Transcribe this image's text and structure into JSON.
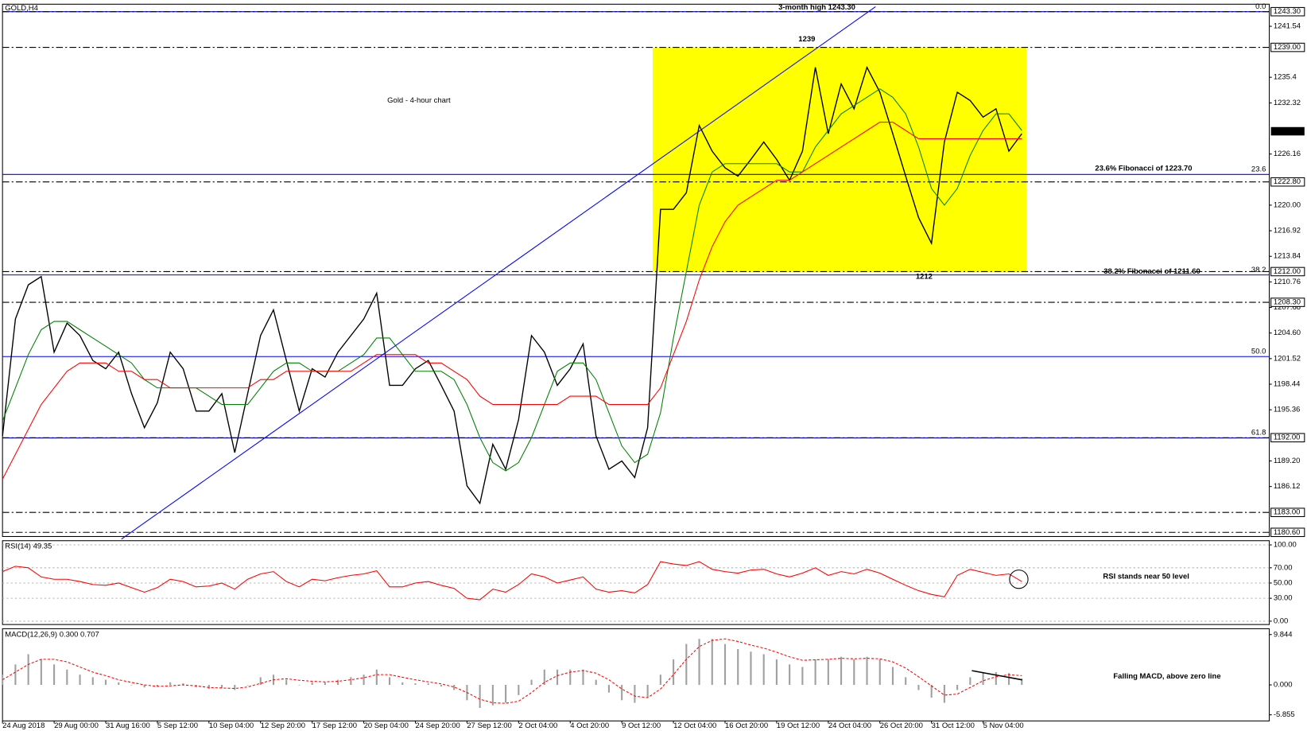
{
  "chart_data": [
    {
      "type": "line",
      "title": "Gold - 4-hour chart",
      "subtitle": "GOLD,H4",
      "categories": [
        "24 Aug 2018",
        null,
        null,
        null,
        "29 Aug 00:00",
        null,
        null,
        null,
        "31 Aug 16:00",
        null,
        null,
        null,
        "5 Sep 12:00",
        null,
        null,
        null,
        "10 Sep 04:00",
        null,
        null,
        null,
        "12 Sep 20:00",
        null,
        null,
        null,
        "17 Sep 12:00",
        null,
        null,
        null,
        "20 Sep 04:00",
        null,
        null,
        null,
        "24 Sep 20:00",
        null,
        null,
        null,
        "27 Sep 12:00",
        null,
        null,
        null,
        "2 Oct 04:00",
        null,
        null,
        null,
        "4 Oct 20:00",
        null,
        null,
        null,
        "9 Oct 12:00",
        null,
        null,
        null,
        "12 Oct 04:00",
        null,
        null,
        null,
        "16 Oct 20:00",
        null,
        null,
        null,
        "19 Oct 12:00",
        null,
        null,
        null,
        "24 Oct 04:00",
        null,
        null,
        null,
        "26 Oct 20:00",
        null,
        null,
        null,
        "31 Oct 12:00",
        null,
        null,
        null,
        "5 Nov 04:00",
        null,
        null,
        null
      ],
      "series": [
        {
          "color": "#000000",
          "values": [
            1192.2,
            1206.3,
            1210.4,
            1211.4,
            1202.3,
            1205.8,
            1204.3,
            1201.3,
            1200.3,
            1202.3,
            1197.3,
            1193.2,
            1196.2,
            1202.3,
            1200.3,
            1195.2,
            1195.2,
            1197.3,
            1190.2,
            1197.3,
            1204.3,
            1207.4,
            1201.3,
            1195.2,
            1200.3,
            1199.3,
            1202.3,
            1204.3,
            1206.3,
            1209.4,
            1198.3,
            1198.3,
            1200.3,
            1201.3,
            1198.3,
            1195.2,
            1186.2,
            1184.1,
            1191.2,
            1188.2,
            1194.2,
            1204.3,
            1202.3,
            1198.3,
            1200.3,
            1203.3,
            1192.2,
            1188.2,
            1189.2,
            1187.2,
            1193.2,
            1219.5,
            1219.5,
            1221.5,
            1229.6,
            1226.5,
            1224.5,
            1223.5,
            1225.5,
            1227.6,
            1225.5,
            1223.0,
            1226.5,
            1236.6,
            1228.6,
            1234.6,
            1231.6,
            1236.6,
            1233.6,
            1228.6,
            1223.5,
            1218.5,
            1215.4,
            1227.6,
            1233.6,
            1232.6,
            1230.6,
            1231.6,
            1226.5,
            1228.6
          ]
        },
        {
          "color": "#008000",
          "values": [
            1194,
            1198,
            1202,
            1205,
            1206,
            1206,
            1205,
            1204,
            1203,
            1202,
            1201,
            1199,
            1198,
            1198,
            1198,
            1198,
            1197,
            1196,
            1196,
            1196,
            1198,
            1200,
            1201,
            1201,
            1200,
            1200,
            1200,
            1201,
            1202,
            1204,
            1204,
            1202,
            1200,
            1200,
            1200,
            1199,
            1196,
            1192,
            1189,
            1188,
            1189,
            1192,
            1196,
            1200,
            1201,
            1201,
            1199,
            1195,
            1191,
            1189,
            1190,
            1195,
            1204,
            1212,
            1220,
            1224,
            1225,
            1225,
            1225,
            1225,
            1225,
            1224,
            1224,
            1227,
            1229,
            1231,
            1232,
            1233,
            1234,
            1233,
            1231,
            1227,
            1222,
            1220,
            1222,
            1226,
            1229,
            1231,
            1231,
            1229
          ]
        },
        {
          "color": "#ff0000",
          "values": [
            1187,
            1190,
            1193,
            1196,
            1198,
            1200,
            1201,
            1201,
            1201,
            1200,
            1200,
            1199,
            1199,
            1198,
            1198,
            1198,
            1198,
            1198,
            1198,
            1198,
            1199,
            1199,
            1200,
            1200,
            1200,
            1200,
            1200,
            1200,
            1201,
            1202,
            1202,
            1202,
            1202,
            1201,
            1201,
            1200,
            1199,
            1197,
            1196,
            1196,
            1196,
            1196,
            1196,
            1196,
            1197,
            1197,
            1197,
            1196,
            1196,
            1196,
            1196,
            1198,
            1202,
            1206,
            1211,
            1215,
            1218,
            1220,
            1221,
            1222,
            1223,
            1223,
            1224,
            1225,
            1226,
            1227,
            1228,
            1229,
            1230,
            1230,
            1229,
            1228,
            1228,
            1228,
            1228,
            1228,
            1228,
            1228,
            1228,
            1228
          ]
        }
      ],
      "ylim": [
        1180.1,
        1244.2
      ],
      "yticks": [
        1241.54,
        1235.4,
        1232.32,
        1226.16,
        {
          "value": 1220,
          "label": "1220.00"
        },
        1216.92,
        1213.84,
        1210.76,
        1207.68,
        {
          "value": 1204.6,
          "label": "1204.60"
        },
        1201.52,
        1198.44,
        1195.36,
        {
          "value": 1189.2,
          "label": "1189.20"
        },
        1186.12
      ],
      "levels": [
        {
          "value": 1243.3,
          "label": "1243.30"
        },
        {
          "value": 1239,
          "label": "1239.00"
        },
        {
          "value": 1222.8,
          "label": "1222.80"
        },
        {
          "value": 1212,
          "label": "1212.00"
        },
        {
          "value": 1208.3,
          "label": "1208.30"
        },
        {
          "value": 1192,
          "label": "1192.00"
        },
        {
          "value": 1183,
          "label": "1183.00"
        },
        {
          "value": 1180.6,
          "label": "1180.60"
        }
      ],
      "current_price": {
        "value": 1228.9,
        "label": "1228.90"
      },
      "fib_levels": [
        {
          "name": "0.0",
          "price": 1243.3
        },
        {
          "name": "23.6",
          "price": 1223.7
        },
        {
          "name": "38.2",
          "price": 1211.6
        },
        {
          "name": "50.0",
          "price": 1201.77
        },
        {
          "name": "61.8",
          "price": 1191.97
        }
      ],
      "highlight": {
        "from": 1212,
        "to": 1239,
        "color": "#ffff00"
      },
      "annotations": [
        "Gold - 4-hour chart",
        "3-month high 1243.30",
        "1239",
        "1212",
        "23.6% Fibonacci of 1223.70",
        "38.2% Fibonacci of 1211.60"
      ]
    },
    {
      "type": "line",
      "title": "RSI(14) 49.35",
      "series": [
        {
          "color": "#ff0000",
          "values": [
            65,
            72,
            70,
            58,
            55,
            55,
            52,
            48,
            47,
            50,
            44,
            38,
            44,
            55,
            52,
            45,
            46,
            50,
            42,
            55,
            62,
            65,
            52,
            45,
            55,
            53,
            57,
            60,
            62,
            66,
            45,
            45,
            50,
            52,
            47,
            43,
            30,
            28,
            42,
            38,
            48,
            62,
            58,
            50,
            54,
            58,
            42,
            38,
            40,
            37,
            48,
            78,
            75,
            73,
            78,
            68,
            65,
            63,
            67,
            68,
            62,
            58,
            63,
            70,
            60,
            65,
            62,
            68,
            63,
            55,
            47,
            40,
            35,
            32,
            60,
            68,
            64,
            60,
            62,
            52
          ]
        }
      ],
      "ylim": [
        -4.4,
        105.5
      ],
      "yticks": [
        {
          "value": 100,
          "label": "100.00"
        },
        {
          "value": 70,
          "label": "70.00"
        },
        {
          "value": 50,
          "label": "50.00"
        },
        {
          "value": 30,
          "label": "30.00"
        },
        {
          "value": 0,
          "label": "0.00"
        }
      ],
      "grid": true,
      "annotations": [
        "RSI stands near 50 level"
      ]
    },
    {
      "type": "bar",
      "title": "MACD(12,26,9) 0.300 0.707",
      "series": [
        {
          "color": "#a0a0a0",
          "type": "bar",
          "values": [
            2,
            4,
            6,
            5,
            4,
            3,
            2,
            1.5,
            1,
            0.5,
            0,
            -0.5,
            -0.3,
            0.5,
            0.3,
            -0.5,
            -0.8,
            -0.6,
            -1,
            0,
            1.5,
            2,
            1,
            0,
            0.5,
            0.5,
            1,
            1.5,
            2,
            3,
            1.5,
            0.5,
            0.3,
            0.3,
            -0.3,
            -1,
            -3,
            -4.5,
            -4,
            -3.5,
            -2,
            1,
            3,
            3,
            3,
            3,
            1,
            -1.5,
            -3,
            -3.5,
            -2.5,
            2,
            5,
            8,
            9,
            9,
            8,
            7,
            6.5,
            6,
            5,
            4,
            3.5,
            5,
            5,
            5.5,
            5,
            5.5,
            5,
            3.5,
            1.5,
            -1,
            -2.5,
            -3.5,
            -1,
            1.5,
            2.5,
            2.5,
            2.3,
            1.2
          ]
        },
        {
          "color": "#ff0000",
          "type": "line",
          "values": [
            1,
            2.5,
            4,
            5,
            5,
            4.5,
            3.5,
            2.5,
            1.8,
            1,
            0.5,
            0,
            -0.3,
            -0.2,
            0,
            -0.2,
            -0.5,
            -0.6,
            -0.7,
            -0.4,
            0.3,
            1,
            1.2,
            0.9,
            0.7,
            0.6,
            0.7,
            1,
            1.4,
            2,
            2,
            1.5,
            1,
            0.6,
            0.2,
            -0.4,
            -1.5,
            -2.8,
            -3.5,
            -3.6,
            -3.2,
            -1.5,
            0.5,
            1.8,
            2.5,
            2.8,
            2.3,
            1,
            -0.8,
            -2.2,
            -2.5,
            -0.8,
            2,
            5,
            7.5,
            8.7,
            9,
            8.5,
            7.8,
            7.2,
            6.4,
            5.5,
            4.8,
            4.9,
            5,
            5.2,
            5.1,
            5.2,
            5.1,
            4.5,
            3.3,
            1.6,
            -0.2,
            -2,
            -1.8,
            -0.5,
            0.8,
            1.6,
            2,
            1.8
          ]
        }
      ],
      "ylim": [
        -7.05,
        10.99
      ],
      "yticks": [
        9.844,
        {
          "value": 0,
          "label": "0.000"
        },
        -5.855
      ],
      "annotations": [
        "Falling MACD, above zero line"
      ]
    }
  ]
}
